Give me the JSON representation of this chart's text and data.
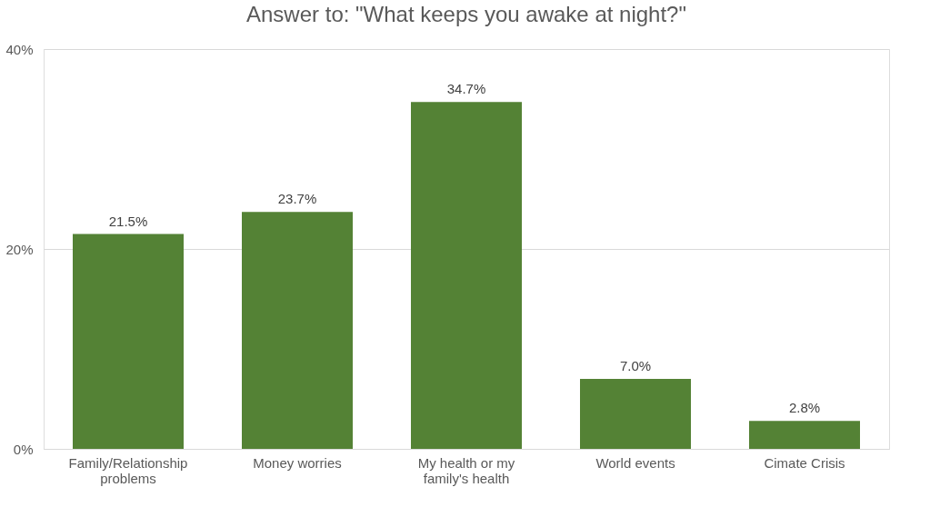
{
  "chart_data": {
    "type": "bar",
    "title": "Answer to: \"What keeps you awake at night?\"",
    "categories": [
      "Family/Relationship problems",
      "Money worries",
      "My health or my family's health",
      "World events",
      "Cimate Crisis"
    ],
    "values": [
      21.5,
      23.7,
      34.7,
      7.0,
      2.8
    ],
    "value_labels": [
      "21.5%",
      "23.7%",
      "34.7%",
      "7.0%",
      "2.8%"
    ],
    "color": "#548235",
    "ylim": [
      0,
      40
    ],
    "yticks": [
      {
        "value": 0,
        "label": "0%"
      },
      {
        "value": 20,
        "label": "20%"
      },
      {
        "value": 40,
        "label": "40%"
      }
    ],
    "grid": "y"
  }
}
